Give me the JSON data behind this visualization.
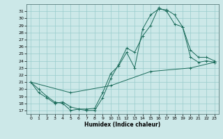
{
  "xlabel": "Humidex (Indice chaleur)",
  "ylabel": "",
  "xlim": [
    -0.5,
    23.5
  ],
  "ylim": [
    16.5,
    32.0
  ],
  "yticks": [
    17,
    18,
    19,
    20,
    21,
    22,
    23,
    24,
    25,
    26,
    27,
    28,
    29,
    30,
    31
  ],
  "xticks": [
    0,
    1,
    2,
    3,
    4,
    5,
    6,
    7,
    8,
    9,
    10,
    11,
    12,
    13,
    14,
    15,
    16,
    17,
    18,
    19,
    20,
    21,
    22,
    23
  ],
  "bg_color": "#cce8e8",
  "grid_color": "#99cccc",
  "line_color": "#1a6b5a",
  "line1_x": [
    0,
    1,
    2,
    3,
    4,
    5,
    6,
    7,
    8,
    9,
    10,
    11,
    12,
    13,
    14,
    15,
    16,
    17,
    18,
    19,
    20,
    21,
    22,
    23
  ],
  "line1_y": [
    21.0,
    20.0,
    19.0,
    18.2,
    18.0,
    17.0,
    17.2,
    17.2,
    17.3,
    19.5,
    22.2,
    23.3,
    25.2,
    23.0,
    28.5,
    30.5,
    31.3,
    31.2,
    30.5,
    28.8,
    24.5,
    23.8,
    24.0,
    23.8
  ],
  "line2_x": [
    0,
    1,
    2,
    3,
    4,
    5,
    6,
    7,
    8,
    9,
    10,
    11,
    12,
    13,
    14,
    15,
    16,
    17,
    18,
    19,
    20,
    21,
    22,
    23
  ],
  "line2_y": [
    21.0,
    19.5,
    18.8,
    18.0,
    18.2,
    17.5,
    17.2,
    17.0,
    17.0,
    18.8,
    21.5,
    23.5,
    25.8,
    25.2,
    27.5,
    29.0,
    31.5,
    31.0,
    29.2,
    28.8,
    25.5,
    24.5,
    24.5,
    24.0
  ],
  "line3_x": [
    0,
    5,
    10,
    15,
    20,
    23
  ],
  "line3_y": [
    21.0,
    19.5,
    20.5,
    22.5,
    23.0,
    23.8
  ]
}
